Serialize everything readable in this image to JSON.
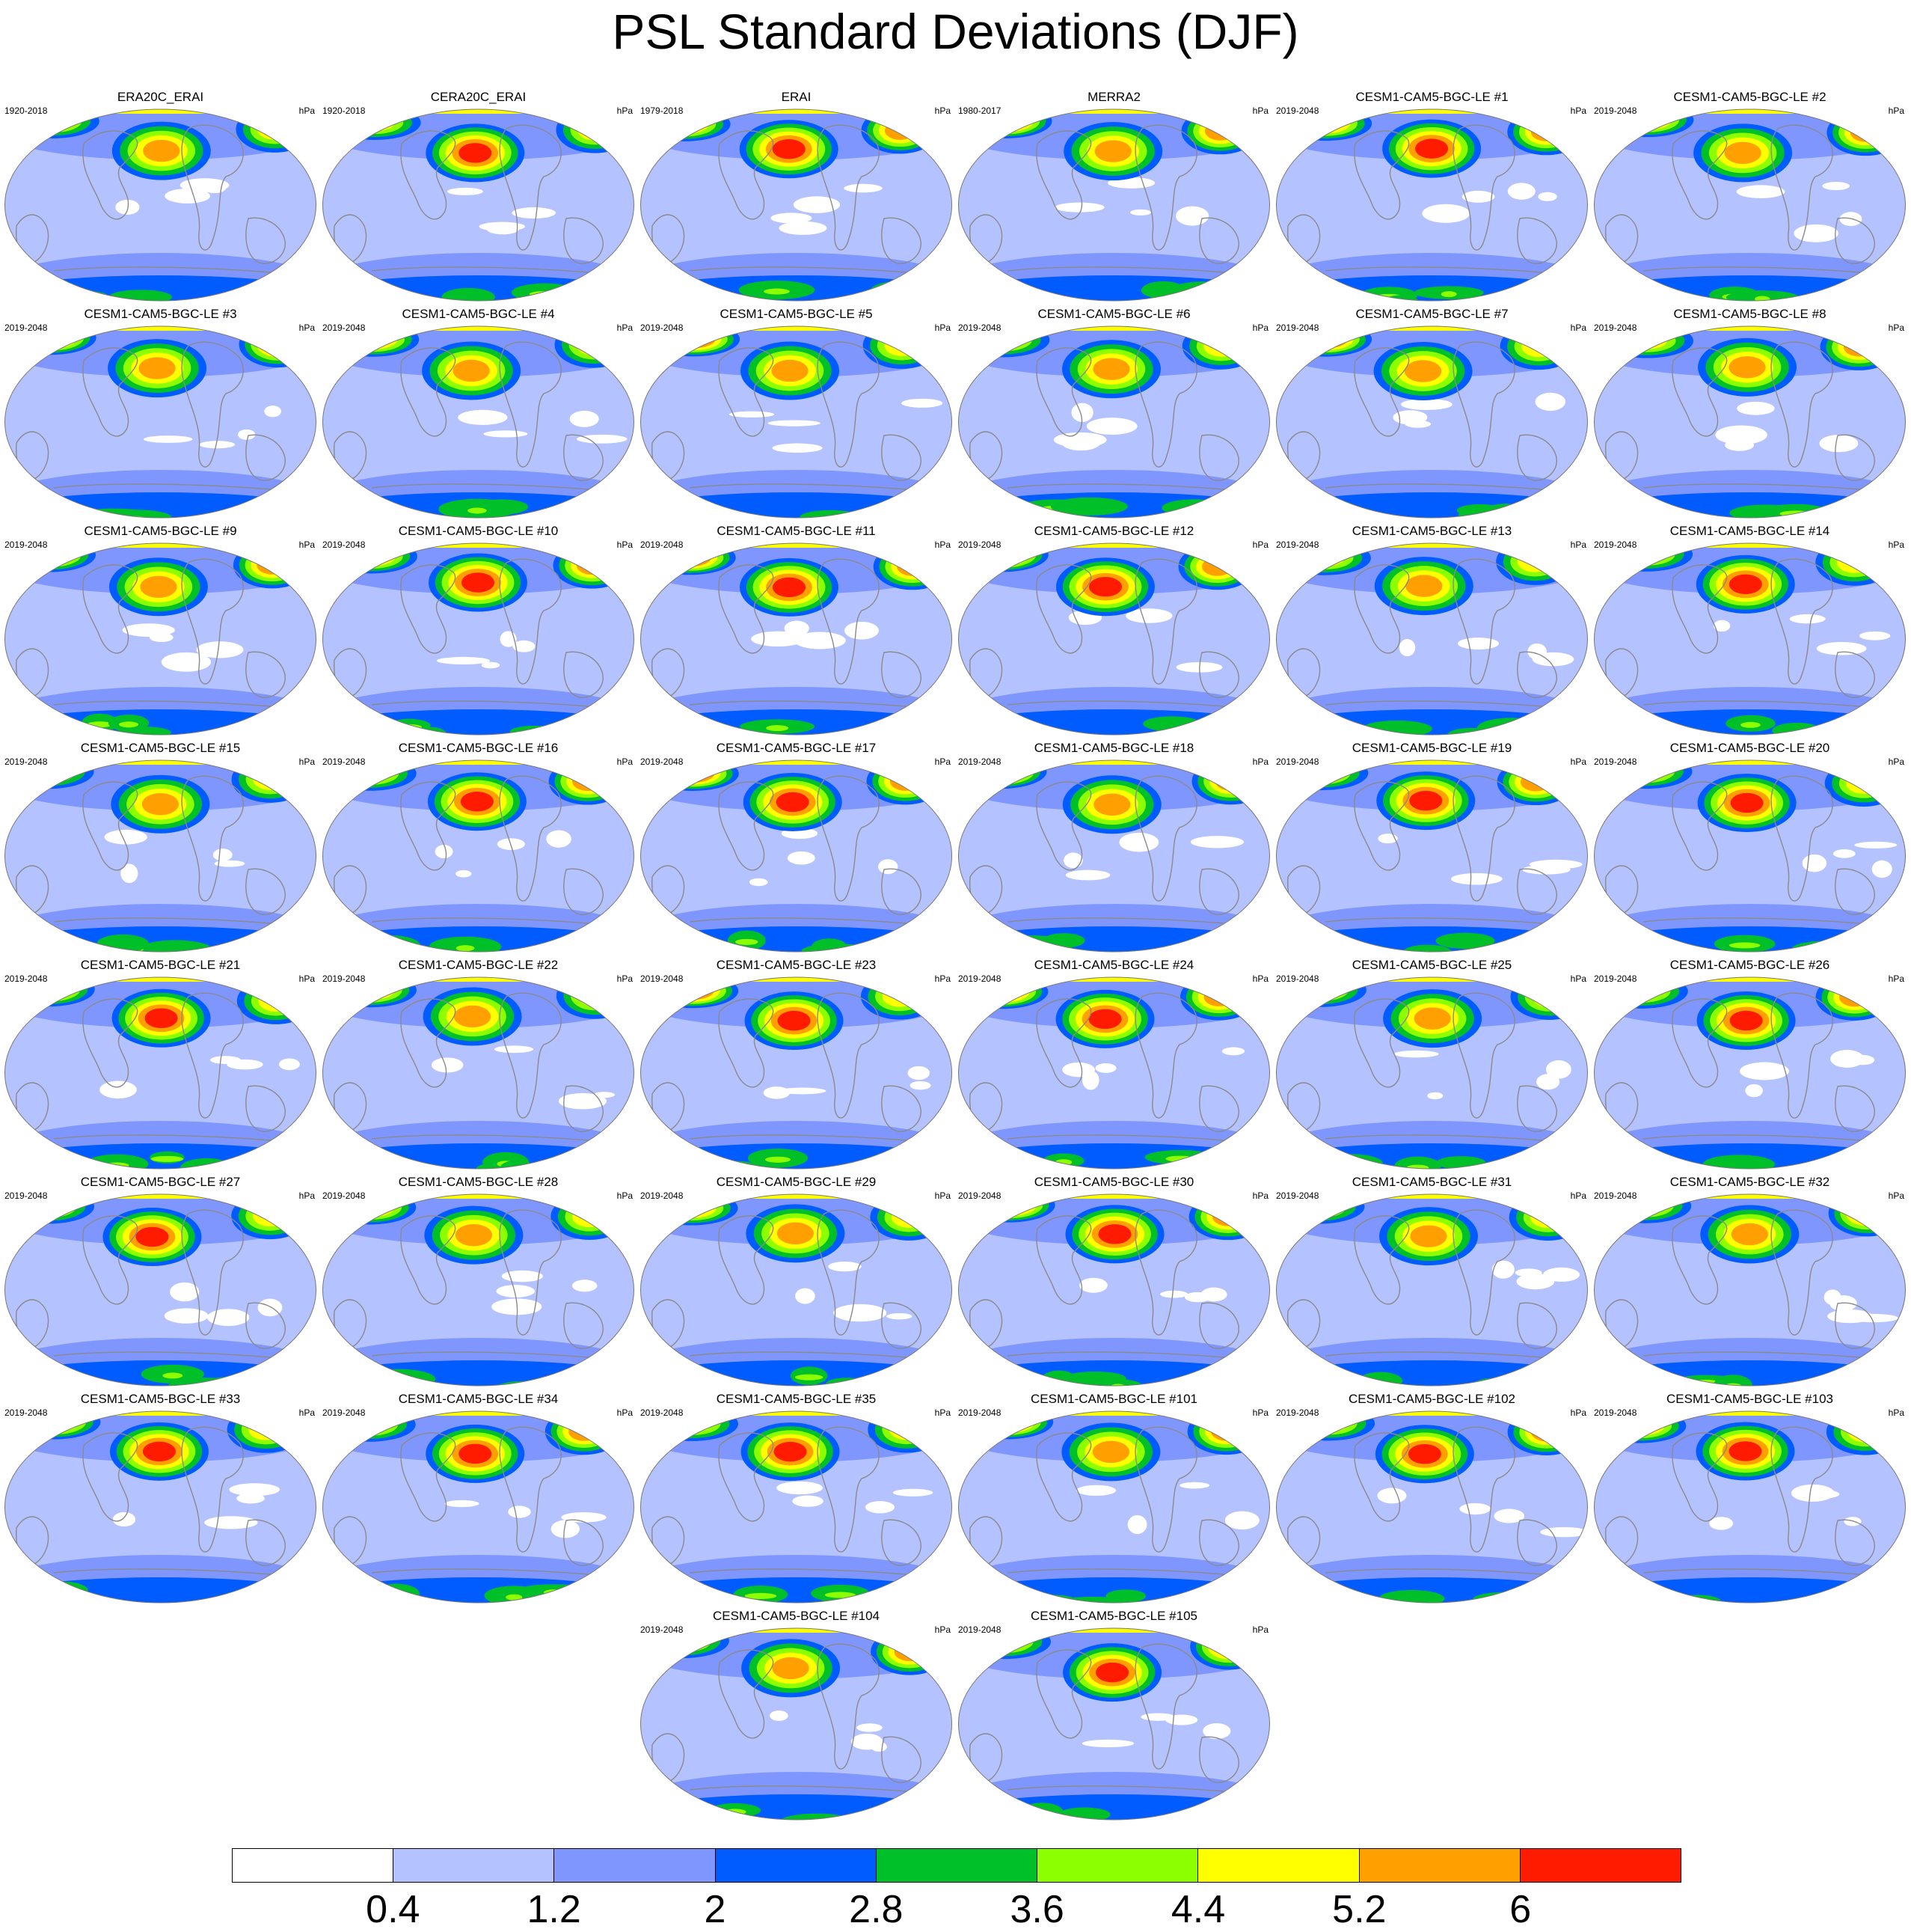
{
  "title": "PSL Standard Deviations (DJF)",
  "unit": "hPa",
  "colors": {
    "levels": [
      "#ffffff",
      "#b4c3ff",
      "#8096ff",
      "#005cff",
      "#00c02a",
      "#8cff00",
      "#ffff00",
      "#ffa000",
      "#ff1b00"
    ],
    "map_background": "#b4c3ff",
    "coastline": "#8a8a8a"
  },
  "colorbar": {
    "labels": [
      "0.4",
      "1.2",
      "2",
      "2.8",
      "3.6",
      "4.4",
      "5.2",
      "6"
    ]
  },
  "panels": [
    {
      "title": "ERA20C_ERAI",
      "years": "1920-2018",
      "unit": "hPa"
    },
    {
      "title": "CERA20C_ERAI",
      "years": "1920-2018",
      "unit": "hPa"
    },
    {
      "title": "ERAI",
      "years": "1979-2018",
      "unit": "hPa"
    },
    {
      "title": "MERRA2",
      "years": "1980-2017",
      "unit": "hPa"
    },
    {
      "title": "CESM1-CAM5-BGC-LE #1",
      "years": "2019-2048",
      "unit": "hPa"
    },
    {
      "title": "CESM1-CAM5-BGC-LE #2",
      "years": "2019-2048",
      "unit": "hPa"
    },
    {
      "title": "CESM1-CAM5-BGC-LE #3",
      "years": "2019-2048",
      "unit": "hPa"
    },
    {
      "title": "CESM1-CAM5-BGC-LE #4",
      "years": "2019-2048",
      "unit": "hPa"
    },
    {
      "title": "CESM1-CAM5-BGC-LE #5",
      "years": "2019-2048",
      "unit": "hPa"
    },
    {
      "title": "CESM1-CAM5-BGC-LE #6",
      "years": "2019-2048",
      "unit": "hPa"
    },
    {
      "title": "CESM1-CAM5-BGC-LE #7",
      "years": "2019-2048",
      "unit": "hPa"
    },
    {
      "title": "CESM1-CAM5-BGC-LE #8",
      "years": "2019-2048",
      "unit": "hPa"
    },
    {
      "title": "CESM1-CAM5-BGC-LE #9",
      "years": "2019-2048",
      "unit": "hPa"
    },
    {
      "title": "CESM1-CAM5-BGC-LE #10",
      "years": "2019-2048",
      "unit": "hPa"
    },
    {
      "title": "CESM1-CAM5-BGC-LE #11",
      "years": "2019-2048",
      "unit": "hPa"
    },
    {
      "title": "CESM1-CAM5-BGC-LE #12",
      "years": "2019-2048",
      "unit": "hPa"
    },
    {
      "title": "CESM1-CAM5-BGC-LE #13",
      "years": "2019-2048",
      "unit": "hPa"
    },
    {
      "title": "CESM1-CAM5-BGC-LE #14",
      "years": "2019-2048",
      "unit": "hPa"
    },
    {
      "title": "CESM1-CAM5-BGC-LE #15",
      "years": "2019-2048",
      "unit": "hPa"
    },
    {
      "title": "CESM1-CAM5-BGC-LE #16",
      "years": "2019-2048",
      "unit": "hPa"
    },
    {
      "title": "CESM1-CAM5-BGC-LE #17",
      "years": "2019-2048",
      "unit": "hPa"
    },
    {
      "title": "CESM1-CAM5-BGC-LE #18",
      "years": "2019-2048",
      "unit": "hPa"
    },
    {
      "title": "CESM1-CAM5-BGC-LE #19",
      "years": "2019-2048",
      "unit": "hPa"
    },
    {
      "title": "CESM1-CAM5-BGC-LE #20",
      "years": "2019-2048",
      "unit": "hPa"
    },
    {
      "title": "CESM1-CAM5-BGC-LE #21",
      "years": "2019-2048",
      "unit": "hPa"
    },
    {
      "title": "CESM1-CAM5-BGC-LE #22",
      "years": "2019-2048",
      "unit": "hPa"
    },
    {
      "title": "CESM1-CAM5-BGC-LE #23",
      "years": "2019-2048",
      "unit": "hPa"
    },
    {
      "title": "CESM1-CAM5-BGC-LE #24",
      "years": "2019-2048",
      "unit": "hPa"
    },
    {
      "title": "CESM1-CAM5-BGC-LE #25",
      "years": "2019-2048",
      "unit": "hPa"
    },
    {
      "title": "CESM1-CAM5-BGC-LE #26",
      "years": "2019-2048",
      "unit": "hPa"
    },
    {
      "title": "CESM1-CAM5-BGC-LE #27",
      "years": "2019-2048",
      "unit": "hPa"
    },
    {
      "title": "CESM1-CAM5-BGC-LE #28",
      "years": "2019-2048",
      "unit": "hPa"
    },
    {
      "title": "CESM1-CAM5-BGC-LE #29",
      "years": "2019-2048",
      "unit": "hPa"
    },
    {
      "title": "CESM1-CAM5-BGC-LE #30",
      "years": "2019-2048",
      "unit": "hPa"
    },
    {
      "title": "CESM1-CAM5-BGC-LE #31",
      "years": "2019-2048",
      "unit": "hPa"
    },
    {
      "title": "CESM1-CAM5-BGC-LE #32",
      "years": "2019-2048",
      "unit": "hPa"
    },
    {
      "title": "CESM1-CAM5-BGC-LE #33",
      "years": "2019-2048",
      "unit": "hPa"
    },
    {
      "title": "CESM1-CAM5-BGC-LE #34",
      "years": "2019-2048",
      "unit": "hPa"
    },
    {
      "title": "CESM1-CAM5-BGC-LE #35",
      "years": "2019-2048",
      "unit": "hPa"
    },
    {
      "title": "CESM1-CAM5-BGC-LE #101",
      "years": "2019-2048",
      "unit": "hPa"
    },
    {
      "title": "CESM1-CAM5-BGC-LE #102",
      "years": "2019-2048",
      "unit": "hPa"
    },
    {
      "title": "CESM1-CAM5-BGC-LE #103",
      "years": "2019-2048",
      "unit": "hPa"
    },
    {
      "title": "CESM1-CAM5-BGC-LE #104",
      "years": "2019-2048",
      "unit": "hPa"
    },
    {
      "title": "CESM1-CAM5-BGC-LE #105",
      "years": "2019-2048",
      "unit": "hPa"
    }
  ]
}
